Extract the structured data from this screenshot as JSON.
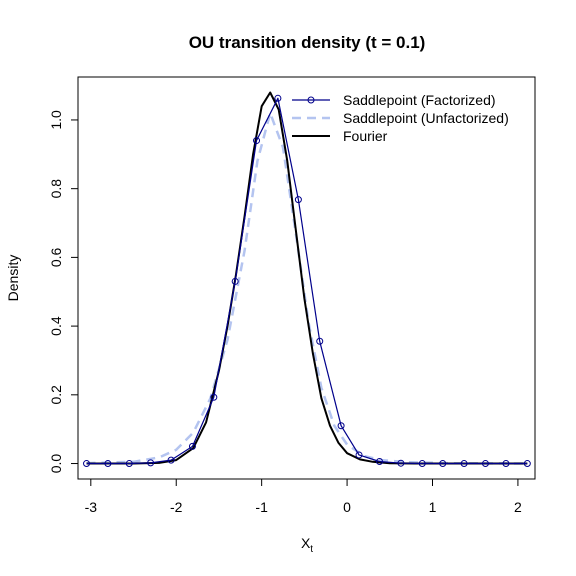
{
  "chart_data": {
    "type": "line",
    "title": "OU transition density (t = 0.1)",
    "xlabel": "X",
    "xlabel_subscript": "t",
    "ylabel": "Density",
    "xlim": [
      -3.15,
      2.2
    ],
    "ylim": [
      -0.045,
      1.125
    ],
    "xticks": [
      -3,
      -2,
      -1,
      0,
      1,
      2
    ],
    "yticks": [
      0.0,
      0.2,
      0.4,
      0.6,
      0.8,
      1.0
    ],
    "xtick_labels": [
      "-3",
      "-2",
      "-1",
      "0",
      "1",
      "2"
    ],
    "ytick_labels": [
      "0.0",
      "0.2",
      "0.4",
      "0.6",
      "0.8",
      "1.0"
    ],
    "legend_position": "top-right",
    "series": [
      {
        "name": "Saddlepoint (Factorized)",
        "color": "#00008b",
        "style": "solid-with-circles",
        "x": [
          -3.05,
          -2.8,
          -2.55,
          -2.3,
          -2.06,
          -1.81,
          -1.56,
          -1.31,
          -1.06,
          -0.81,
          -0.57,
          -0.32,
          -0.07,
          0.14,
          0.38,
          0.63,
          0.88,
          1.12,
          1.37,
          1.62,
          1.86,
          2.11
        ],
        "y": [
          0.0,
          0.0,
          0.0,
          0.002,
          0.01,
          0.05,
          0.193,
          0.53,
          0.94,
          1.063,
          0.768,
          0.356,
          0.11,
          0.025,
          0.006,
          0.001,
          0.0,
          0.0,
          0.0,
          0.0,
          0.0,
          0.0
        ]
      },
      {
        "name": "Saddlepoint (Unfactorized)",
        "color": "#b4c4f0",
        "style": "dashed",
        "x": [
          -3.05,
          -2.5,
          -2.2,
          -2.0,
          -1.8,
          -1.6,
          -1.4,
          -1.2,
          -1.05,
          -0.9,
          -0.75,
          -0.6,
          -0.45,
          -0.3,
          -0.15,
          0.0,
          0.2,
          0.4,
          0.7,
          1.2,
          2.11
        ],
        "y": [
          0.001,
          0.005,
          0.018,
          0.04,
          0.09,
          0.19,
          0.36,
          0.62,
          0.88,
          1.02,
          0.92,
          0.67,
          0.41,
          0.22,
          0.11,
          0.055,
          0.022,
          0.01,
          0.004,
          0.001,
          0.0
        ]
      },
      {
        "name": "Fourier",
        "color": "#000000",
        "style": "solid",
        "x": [
          -3.05,
          -2.5,
          -2.2,
          -2.0,
          -1.8,
          -1.65,
          -1.5,
          -1.4,
          -1.3,
          -1.2,
          -1.1,
          -1.0,
          -0.9,
          -0.8,
          -0.7,
          -0.6,
          -0.5,
          -0.4,
          -0.3,
          -0.2,
          -0.1,
          0.0,
          0.15,
          0.3,
          0.5,
          0.8,
          1.2,
          2.11
        ],
        "y": [
          0.0,
          0.0,
          0.002,
          0.01,
          0.045,
          0.12,
          0.27,
          0.4,
          0.55,
          0.72,
          0.9,
          1.04,
          1.08,
          1.03,
          0.88,
          0.68,
          0.48,
          0.32,
          0.19,
          0.11,
          0.06,
          0.03,
          0.012,
          0.005,
          0.001,
          0.0,
          0.0,
          0.0
        ]
      }
    ]
  }
}
